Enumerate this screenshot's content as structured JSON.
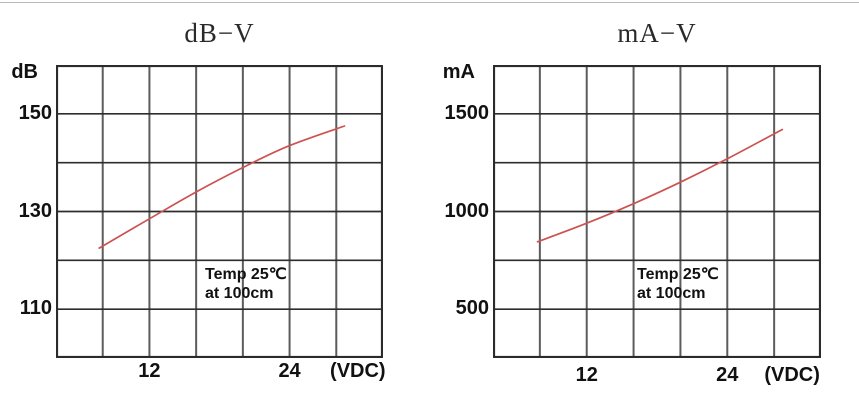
{
  "canvas": {
    "background": "#ffffff",
    "top_rule_color": "#b9b9b9"
  },
  "charts": [
    {
      "title": "dB−V",
      "unit_label": "dB",
      "x_axis_label": "(VDC)",
      "y_ticks": [
        {
          "value": 150,
          "label": "150"
        },
        {
          "value": 130,
          "label": "130"
        },
        {
          "value": 110,
          "label": "110"
        }
      ],
      "x_ticks": [
        {
          "value": 12,
          "label": "12"
        },
        {
          "value": 24,
          "label": "24"
        }
      ],
      "annotation": {
        "line1": "Temp 25℃",
        "line2": "at 100cm"
      }
    },
    {
      "title": "mA−V",
      "unit_label": "mA",
      "x_axis_label": "(VDC)",
      "y_ticks": [
        {
          "value": 1500,
          "label": "1500"
        },
        {
          "value": 1000,
          "label": "1000"
        },
        {
          "value": 500,
          "label": "500"
        }
      ],
      "x_ticks": [
        {
          "value": 12,
          "label": "12"
        },
        {
          "value": 24,
          "label": "24"
        }
      ],
      "annotation": {
        "line1": "Temp 25℃",
        "line2": "at 100cm"
      }
    }
  ],
  "chart_data": [
    {
      "type": "line",
      "title": "dB−V",
      "xlabel": "(VDC)",
      "ylabel": "dB",
      "x": [
        7.7,
        12,
        16,
        20,
        24,
        28.7
      ],
      "values": [
        122.5,
        128.5,
        134,
        139,
        143.5,
        147.5
      ],
      "xlim": [
        4,
        32
      ],
      "ylim": [
        100,
        160
      ],
      "x_grid_step": 4,
      "y_grid_step": 10,
      "grid": "on",
      "legend": "none",
      "series_color": "#cc5351",
      "grid_h_color": "#2d2d2d",
      "grid_v_color": "#5c5c5c",
      "border_color": "#2b2b2b",
      "annotation": "Temp 25℃ at 100cm"
    },
    {
      "type": "line",
      "title": "mA−V",
      "xlabel": "(VDC)",
      "ylabel": "mA",
      "x": [
        7.8,
        12,
        16,
        20,
        24,
        28.7
      ],
      "values": [
        845,
        940,
        1040,
        1150,
        1270,
        1420
      ],
      "xlim": [
        4,
        32
      ],
      "ylim": [
        250,
        1750
      ],
      "x_grid_step": 4,
      "y_grid_step": 250,
      "grid": "on",
      "legend": "none",
      "series_color": "#cc5351",
      "grid_h_color": "#2d2d2d",
      "grid_v_color": "#5c5c5c",
      "border_color": "#2b2b2b",
      "annotation": "Temp 25℃ at 100cm"
    }
  ]
}
